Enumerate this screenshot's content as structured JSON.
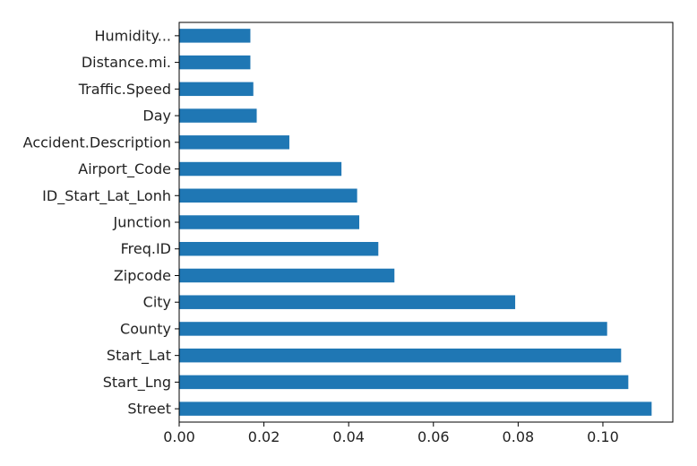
{
  "chart_data": {
    "type": "bar",
    "orientation": "horizontal",
    "categories": [
      "Street",
      "Start_Lng",
      "Start_Lat",
      "County",
      "City",
      "Zipcode",
      "Freq.ID",
      "Junction",
      "ID_Start_Lat_Lonh",
      "Airport_Code",
      "Accident.Description",
      "Day",
      "Traffic.Speed",
      "Distance.mi.",
      "Humidity..."
    ],
    "values": [
      0.1115,
      0.106,
      0.1043,
      0.101,
      0.0793,
      0.0508,
      0.047,
      0.0425,
      0.042,
      0.0383,
      0.026,
      0.0183,
      0.0175,
      0.0168,
      0.0168
    ],
    "title": "",
    "xlabel": "",
    "ylabel": "",
    "xlim": [
      0.0,
      0.1165
    ],
    "x_ticks": [
      "0.00",
      "0.02",
      "0.04",
      "0.06",
      "0.08",
      "0.10"
    ],
    "grid": false,
    "bar_color": "#1f77b4"
  }
}
